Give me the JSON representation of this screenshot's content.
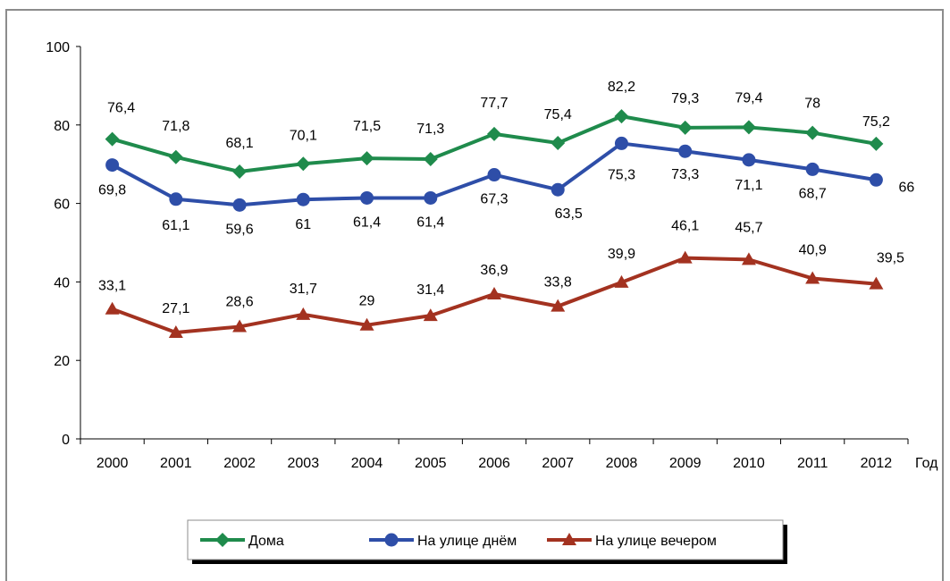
{
  "chart_data": {
    "type": "line",
    "xlabel": "Год",
    "ylabel": "",
    "ylim": [
      0,
      100
    ],
    "yticks": [
      0,
      20,
      40,
      60,
      80,
      100
    ],
    "categories": [
      "2000",
      "2001",
      "2002",
      "2003",
      "2004",
      "2005",
      "2006",
      "2007",
      "2008",
      "2009",
      "2010",
      "2011",
      "2012"
    ],
    "legend_position": "bottom",
    "grid": false,
    "series": [
      {
        "name": "Дома",
        "color": "#1f8b4c",
        "marker": "diamond",
        "values": [
          76.4,
          71.8,
          68.1,
          70.1,
          71.5,
          71.3,
          77.7,
          75.4,
          82.2,
          79.3,
          79.4,
          78,
          75.2
        ],
        "labels": [
          "76,4",
          "71,8",
          "68,1",
          "70,1",
          "71,5",
          "71,3",
          "77,7",
          "75,4",
          "82,2",
          "79,3",
          "79,4",
          "78",
          "75,2"
        ]
      },
      {
        "name": "На улице днём",
        "color": "#2e4ea8",
        "marker": "circle",
        "values": [
          69.8,
          61.1,
          59.6,
          61,
          61.4,
          61.4,
          67.3,
          63.5,
          75.3,
          73.3,
          71.1,
          68.7,
          66
        ],
        "labels": [
          "69,8",
          "61,1",
          "59,6",
          "61",
          "61,4",
          "61,4",
          "67,3",
          "63,5",
          "75,3",
          "73,3",
          "71,1",
          "68,7",
          "66"
        ]
      },
      {
        "name": "На улице вечером",
        "color": "#a33220",
        "marker": "triangle",
        "values": [
          33.1,
          27.1,
          28.6,
          31.7,
          29,
          31.4,
          36.9,
          33.8,
          39.9,
          46.1,
          45.7,
          40.9,
          39.5
        ],
        "labels": [
          "33,1",
          "27,1",
          "28,6",
          "31,7",
          "29",
          "31,4",
          "36,9",
          "33,8",
          "39,9",
          "46,1",
          "45,7",
          "40,9",
          "39,5"
        ]
      }
    ]
  }
}
